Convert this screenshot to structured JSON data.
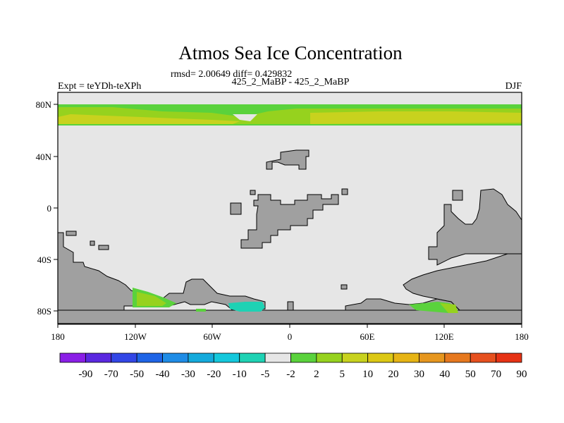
{
  "title": "Atmos Sea Ice Concentration",
  "stats": "rmsd= 2.00649 diff= 0.429832",
  "left_label": "Expt = teYDh-teXPh",
  "center_label": "425_2_MaBP - 425_2_MaBP",
  "right_label": "DJF",
  "x_ticks": [
    "180",
    "120W",
    "60W",
    "0",
    "60E",
    "120E",
    "180"
  ],
  "y_ticks": [
    "80N",
    "40N",
    "0",
    "40S",
    "80S"
  ],
  "colorbar": {
    "labels": [
      "-90",
      "-70",
      "-50",
      "-40",
      "-30",
      "-20",
      "-10",
      "-5",
      "-2",
      "2",
      "5",
      "10",
      "20",
      "30",
      "40",
      "50",
      "70",
      "90"
    ],
    "colors": [
      "#8a1ee6",
      "#5a28e0",
      "#3246e6",
      "#1e64e6",
      "#1e8ce6",
      "#14aadc",
      "#14c8dc",
      "#1ed2b4",
      "#e6e6e6",
      "#5ad23c",
      "#96d21e",
      "#c8d21e",
      "#dcc814",
      "#e6b414",
      "#e6961e",
      "#e6781e",
      "#e6501e",
      "#e63214"
    ]
  },
  "colors": {
    "land": "#a0a0a0",
    "ocean": "#e6e6e6",
    "coast": "#000000"
  },
  "map_data": {
    "lon_range": [
      -180,
      180
    ],
    "lat_range": [
      -90,
      90
    ]
  }
}
